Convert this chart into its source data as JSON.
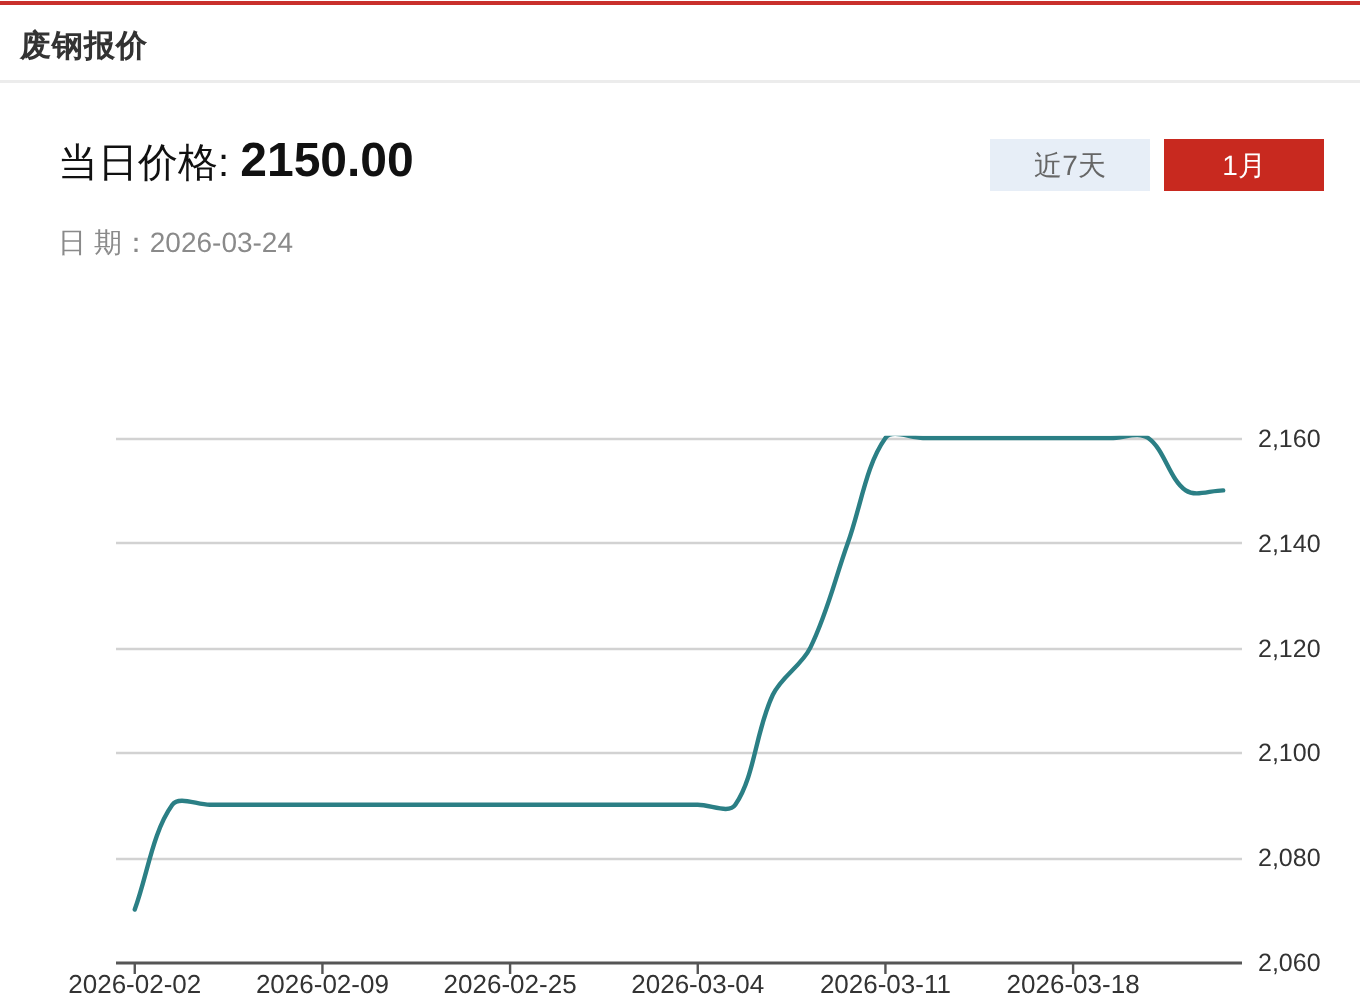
{
  "chart_data": {
    "type": "line",
    "title": "废钢报价",
    "subtitle": "当日价格: **2150.00**",
    "annotations": [
      "日 期：2026-03-24",
      "近7天",
      "1月"
    ],
    "categories": [
      "2026-02-02",
      null,
      null,
      null,
      null,
      "2026-02-09",
      null,
      null,
      null,
      null,
      "2026-02-25",
      null,
      null,
      null,
      null,
      "2026-03-04",
      null,
      null,
      null,
      null,
      "2026-03-11",
      null,
      null,
      null,
      null,
      "2026-03-18",
      null,
      null,
      null,
      null
    ],
    "series": [
      {
        "color": "#2b7f85",
        "values": [
          2070,
          2090,
          2090,
          2090,
          2090,
          2090,
          2090,
          2090,
          2090,
          2090,
          2090,
          2090,
          2090,
          2090,
          2090,
          2090,
          2090,
          2111,
          2120,
          2140,
          2160,
          2160,
          2160,
          2160,
          2160,
          2160,
          2160,
          2160,
          2150,
          2150
        ]
      }
    ],
    "ylim": [
      2060,
      2160
    ],
    "yticks": [
      {
        "value": 2060,
        "label": "2,060"
      },
      {
        "value": 2080,
        "label": "2,080"
      },
      {
        "value": 2100,
        "label": "2,100"
      },
      {
        "value": 2120,
        "label": "2,120"
      },
      {
        "value": 2140,
        "label": "2,140"
      },
      {
        "value": 2160,
        "label": "2,160"
      }
    ],
    "grid": "y",
    "line_style": "solid"
  }
}
